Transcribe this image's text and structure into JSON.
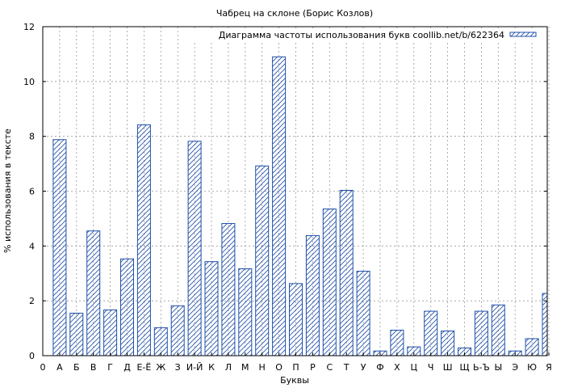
{
  "chart_data": {
    "type": "bar",
    "title": "Чабрец на склоне (Борис Козлов)",
    "xlabel": "Буквы",
    "ylabel": "% использования в тексте",
    "ylim": [
      0,
      12
    ],
    "yticks": [
      "0",
      "2",
      "4",
      "6",
      "8",
      "10",
      "12"
    ],
    "x_origin_label": "0",
    "categories": [
      "А",
      "Б",
      "В",
      "Г",
      "Д",
      "Е-Ё",
      "Ж",
      "З",
      "И-Й",
      "К",
      "Л",
      "М",
      "Н",
      "О",
      "П",
      "Р",
      "С",
      "Т",
      "У",
      "Ф",
      "Х",
      "Ц",
      "Ч",
      "Ш",
      "Щ",
      "Ь-Ъ",
      "Ы",
      "Э",
      "Ю",
      "Я"
    ],
    "series": [
      {
        "name": "Диаграмма частоты использования букв coollib.net/b/622364",
        "values": [
          7.88,
          1.55,
          4.55,
          1.67,
          3.53,
          8.42,
          1.02,
          1.82,
          7.82,
          3.43,
          4.82,
          3.17,
          6.92,
          10.9,
          2.63,
          4.38,
          5.35,
          6.03,
          3.08,
          0.17,
          0.93,
          0.32,
          1.62,
          0.9,
          0.28,
          1.62,
          1.85,
          0.17,
          0.62,
          2.27
        ]
      }
    ],
    "grid": true,
    "legend_position": "top-right",
    "bar_color": "#1f4fa8"
  }
}
